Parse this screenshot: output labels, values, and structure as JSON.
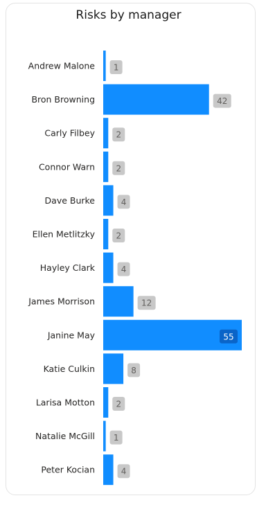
{
  "chart_data": {
    "type": "bar",
    "orientation": "horizontal",
    "title": "Risks by manager",
    "categories": [
      "Andrew Malone",
      "Bron Browning",
      "Carly Filbey",
      "Connor Warn",
      "Dave Burke",
      "Ellen Metlitzky",
      "Hayley Clark",
      "James Morrison",
      "Janine May",
      "Katie Culkin",
      "Larisa Motton",
      "Natalie McGill",
      "Peter Kocian"
    ],
    "values": [
      1,
      42,
      2,
      2,
      4,
      2,
      4,
      12,
      55,
      8,
      2,
      1,
      4
    ],
    "xlim": [
      0,
      55
    ],
    "xlabel": "",
    "ylabel": "",
    "grid": false,
    "legend": "none",
    "bar_color": "#118DFF",
    "label_bg_color": "#C8C8C8",
    "label_text_color": "#605E5C",
    "label_inside_bg_color": "#0A64C8",
    "label_inside_text_color": "#FFFFFF"
  }
}
